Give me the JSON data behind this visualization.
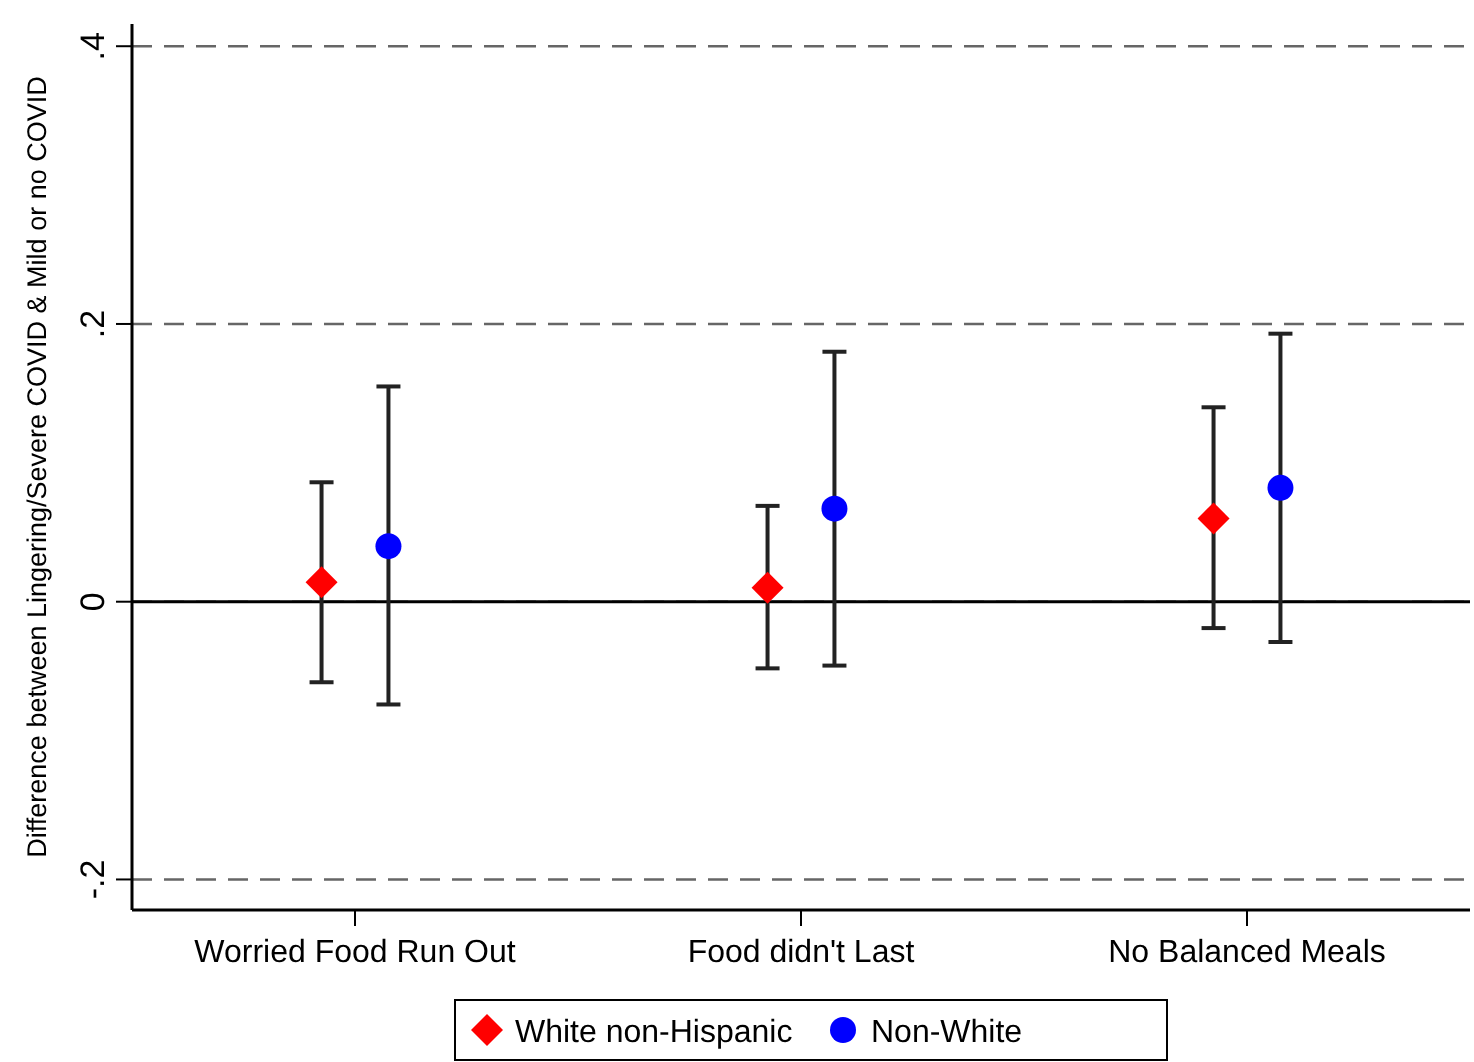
{
  "chart_data": {
    "type": "scatter",
    "ylabel": "Difference between Lingering/Severe COVID & Mild or no COVID",
    "categories": [
      "Worried Food Run Out",
      "Food didn't Last",
      "No Balanced Meals"
    ],
    "ylim": [
      -0.222,
      0.416
    ],
    "yticks": [
      {
        "value": -0.2,
        "label": "-.2"
      },
      0,
      {
        "value": 0.2,
        "label": ".2"
      },
      {
        "value": 0.4,
        "label": ".4"
      }
    ],
    "grid": "y",
    "ref_lines": [
      {
        "axis": "y",
        "value": 0,
        "color": "#000000",
        "line_style": "solid"
      }
    ],
    "legend": "bottom",
    "series": [
      {
        "name": "White non-Hispanic",
        "color": "#ff0000",
        "marker": "diamond",
        "values": [
          0.014,
          0.01,
          0.06
        ],
        "errors": [
          [
            -0.058,
            0.086
          ],
          [
            -0.048,
            0.069
          ],
          [
            -0.019,
            0.14
          ]
        ]
      },
      {
        "name": "Non-White",
        "color": "#0000ff",
        "marker": "circle",
        "values": [
          0.04,
          0.067,
          0.082
        ],
        "errors": [
          [
            -0.074,
            0.155
          ],
          [
            -0.046,
            0.18
          ],
          [
            -0.029,
            0.193
          ]
        ]
      }
    ]
  }
}
